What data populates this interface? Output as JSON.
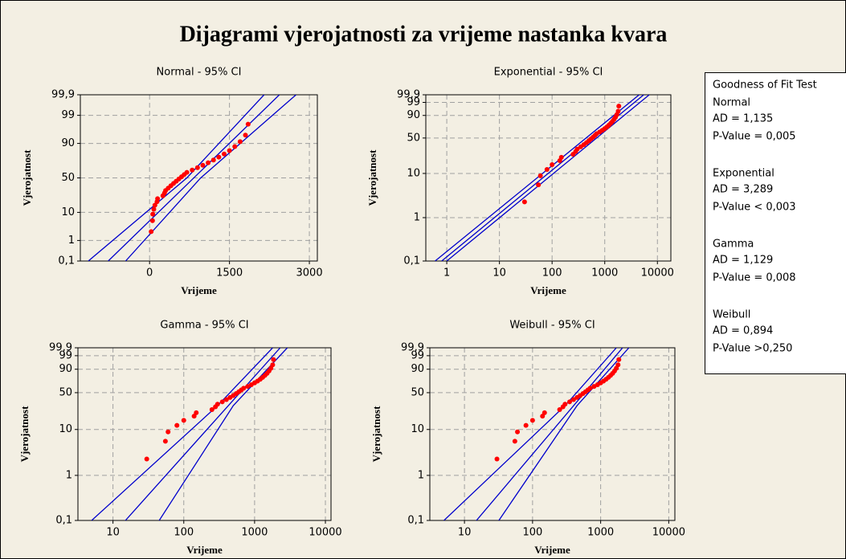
{
  "title": "Dijagrami vjerojatnosti za vrijeme nastanka kvara",
  "fit_test": {
    "title": "Goodness of Fit Test",
    "entries": [
      {
        "name": "Normal",
        "ad": "AD = 1,135",
        "p": "P-Value = 0,005"
      },
      {
        "name": "Exponential",
        "ad": "AD = 3,289",
        "p": "P-Value < 0,003"
      },
      {
        "name": "Gamma",
        "ad": "AD = 1,129",
        "p": "P-Value = 0,008"
      },
      {
        "name": "Weibull",
        "ad": "AD = 0,894",
        "p": "P-Value >0,250"
      }
    ]
  },
  "chart_data": [
    {
      "type": "probability",
      "title": "Normal - 95% CI",
      "xlabel": "Vrijeme",
      "ylabel": "Vjerojatnost",
      "xscale": "linear",
      "yscale": "normal",
      "grid": true,
      "color": "#ff0000",
      "line_color": "#0000cc",
      "xlim": [
        -1300,
        3150
      ],
      "xticks": [
        0,
        1500,
        3000
      ],
      "ylim": [
        0.1,
        99.9
      ],
      "yticks": [
        {
          "value": 0.1,
          "label": "0,1"
        },
        1,
        10,
        50,
        90,
        99,
        {
          "value": 99.9,
          "label": "99,9"
        }
      ],
      "x": [
        30,
        55,
        60,
        80,
        100,
        140,
        150,
        250,
        280,
        300,
        350,
        400,
        450,
        500,
        550,
        600,
        650,
        700,
        800,
        900,
        1000,
        1100,
        1200,
        1300,
        1400,
        1500,
        1600,
        1700,
        1800,
        1850
      ],
      "values": [
        2.3,
        5.6,
        8.9,
        12.2,
        15.5,
        18.8,
        22.0,
        25.3,
        28.6,
        31.9,
        35.2,
        38.5,
        41.8,
        45.1,
        48.4,
        51.6,
        54.9,
        58.2,
        61.5,
        64.8,
        68.1,
        71.4,
        74.7,
        78.0,
        81.3,
        84.5,
        87.8,
        91.1,
        94.4,
        97.7
      ],
      "fit": {
        "x": [
          -777,
          2437
        ],
        "values": [
          0.1,
          99.9
        ]
      },
      "ci_lower": {
        "x": [
          -1150,
          700,
          2150
        ],
        "values": [
          0.1,
          50,
          99.9
        ]
      },
      "ci_upper": {
        "x": [
          -450,
          960,
          2750
        ],
        "values": [
          0.1,
          50,
          99.9
        ]
      }
    },
    {
      "type": "probability",
      "title": "Exponential - 95% CI",
      "xlabel": "Vrijeme",
      "ylabel": "Vjerojatnost",
      "xscale": "log",
      "yscale": "weibull",
      "grid": true,
      "color": "#ff0000",
      "line_color": "#0000cc",
      "xlim": [
        0.4,
        18000
      ],
      "xticks": [
        1,
        10,
        100,
        1000,
        10000
      ],
      "ylim": [
        0.1,
        99.9
      ],
      "yticks": [
        {
          "value": 0.1,
          "label": "0,1"
        },
        1,
        10,
        50,
        90,
        99,
        {
          "value": 99.9,
          "label": "99,9"
        }
      ],
      "x": [
        30,
        55,
        60,
        80,
        100,
        140,
        150,
        250,
        280,
        300,
        350,
        400,
        450,
        500,
        550,
        600,
        650,
        700,
        800,
        900,
        1000,
        1100,
        1200,
        1300,
        1400,
        1500,
        1600,
        1700,
        1800,
        1850
      ],
      "values": [
        2.3,
        5.6,
        8.9,
        12.2,
        15.5,
        18.8,
        22.0,
        25.3,
        28.6,
        31.9,
        35.2,
        38.5,
        41.8,
        45.1,
        48.4,
        51.6,
        54.9,
        58.2,
        61.5,
        64.8,
        68.1,
        71.4,
        74.7,
        78.0,
        81.3,
        84.5,
        87.8,
        91.1,
        94.4,
        97.7
      ],
      "fit": {
        "x": [
          0.8,
          5500
        ],
        "values": [
          0.1,
          99.9
        ]
      },
      "ci_lower": {
        "x": [
          0.6,
          4500
        ],
        "values": [
          0.1,
          99.9
        ]
      },
      "ci_upper": {
        "x": [
          1.0,
          7000
        ],
        "values": [
          0.1,
          99.9
        ]
      }
    },
    {
      "type": "probability",
      "title": "Gamma - 95% CI",
      "xlabel": "Vrijeme",
      "ylabel": "Vjerojatnost",
      "xscale": "log",
      "yscale": "weibull",
      "grid": true,
      "color": "#ff0000",
      "line_color": "#0000cc",
      "xlim": [
        3.2,
        12000
      ],
      "xticks": [
        10,
        100,
        1000,
        10000
      ],
      "ylim": [
        0.1,
        99.9
      ],
      "yticks": [
        {
          "value": 0.1,
          "label": "0,1"
        },
        1,
        10,
        50,
        90,
        99,
        {
          "value": 99.9,
          "label": "99,9"
        }
      ],
      "x": [
        30,
        55,
        60,
        80,
        100,
        140,
        150,
        250,
        280,
        300,
        350,
        400,
        450,
        500,
        550,
        600,
        650,
        700,
        800,
        900,
        1000,
        1100,
        1200,
        1300,
        1400,
        1500,
        1600,
        1700,
        1800,
        1850
      ],
      "values": [
        2.3,
        5.6,
        8.9,
        12.2,
        15.5,
        18.8,
        22.0,
        25.3,
        28.6,
        31.9,
        35.2,
        38.5,
        41.8,
        45.1,
        48.4,
        51.6,
        54.9,
        58.2,
        61.5,
        64.8,
        68.1,
        71.4,
        74.7,
        78.0,
        81.3,
        84.5,
        87.8,
        91.1,
        94.4,
        97.7
      ],
      "fit": {
        "x": [
          15,
          2300
        ],
        "values": [
          0.1,
          99.9
        ]
      },
      "ci_lower": {
        "x": [
          5,
          300,
          1800
        ],
        "values": [
          0.1,
          30,
          99.9
        ]
      },
      "ci_upper": {
        "x": [
          45,
          500,
          2900
        ],
        "values": [
          0.1,
          30,
          99.9
        ]
      }
    },
    {
      "type": "probability",
      "title": "Weibull - 95% CI",
      "xlabel": "Vrijeme",
      "ylabel": "Vjerojatnost",
      "xscale": "log",
      "yscale": "weibull",
      "grid": true,
      "color": "#ff0000",
      "line_color": "#0000cc",
      "xlim": [
        3.1,
        12300
      ],
      "xticks": [
        10,
        100,
        1000,
        10000
      ],
      "ylim": [
        0.1,
        99.9
      ],
      "yticks": [
        {
          "value": 0.1,
          "label": "0,1"
        },
        1,
        10,
        50,
        90,
        99,
        {
          "value": 99.9,
          "label": "99,9"
        }
      ],
      "x": [
        30,
        55,
        60,
        80,
        100,
        140,
        150,
        250,
        280,
        300,
        350,
        400,
        450,
        500,
        550,
        600,
        650,
        700,
        800,
        900,
        1000,
        1100,
        1200,
        1300,
        1400,
        1500,
        1600,
        1700,
        1800,
        1850
      ],
      "values": [
        2.3,
        5.6,
        8.9,
        12.2,
        15.5,
        18.8,
        22.0,
        25.3,
        28.6,
        31.9,
        35.2,
        38.5,
        41.8,
        45.1,
        48.4,
        51.6,
        54.9,
        58.2,
        61.5,
        64.8,
        68.1,
        71.4,
        74.7,
        78.0,
        81.3,
        84.5,
        87.8,
        91.1,
        94.4,
        97.7
      ],
      "fit": {
        "x": [
          15,
          2100
        ],
        "values": [
          0.1,
          99.9
        ]
      },
      "ci_lower": {
        "x": [
          5,
          300,
          1700
        ],
        "values": [
          0.1,
          30,
          99.9
        ]
      },
      "ci_upper": {
        "x": [
          32,
          450,
          2600
        ],
        "values": [
          0.1,
          30,
          99.9
        ]
      }
    }
  ]
}
